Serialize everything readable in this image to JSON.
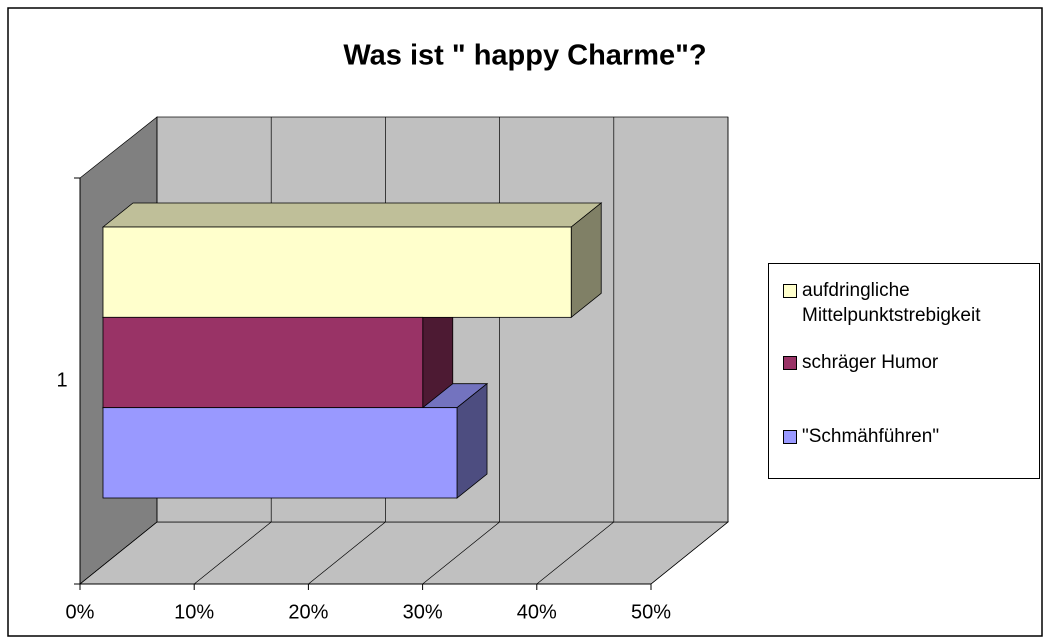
{
  "chart_data": {
    "type": "bar3d",
    "title": "Was ist \" happy Charme\"?",
    "categories": [
      "1"
    ],
    "series": [
      {
        "name": "aufdringliche Mittelpunktstrebigkeit",
        "color": "#ffffcc",
        "values": [
          41
        ]
      },
      {
        "name": "schräger Humor",
        "color": "#993366",
        "values": [
          28
        ]
      },
      {
        "name": "\"Schmähführen\"",
        "color": "#9999ff",
        "values": [
          31
        ]
      }
    ],
    "xlim": [
      0,
      50
    ],
    "xticks": [
      {
        "value": 0,
        "label": "0%"
      },
      {
        "value": 10,
        "label": "10%"
      },
      {
        "value": 20,
        "label": "20%"
      },
      {
        "value": 30,
        "label": "30%"
      },
      {
        "value": 40,
        "label": "40%"
      },
      {
        "value": 50,
        "label": "50%"
      }
    ],
    "grid": true,
    "legend": "right"
  }
}
